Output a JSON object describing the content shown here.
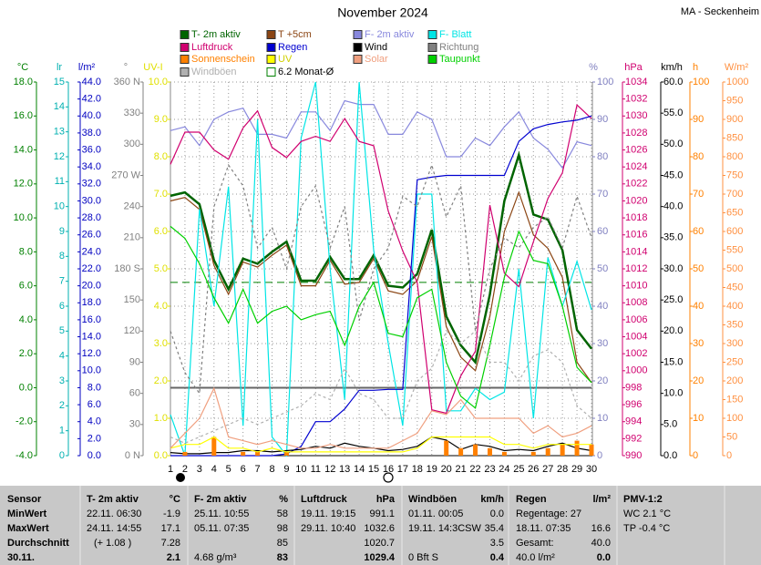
{
  "chart_data": {
    "type": "line",
    "title": "November 2024",
    "station": "MA - Seckenheim",
    "x": [
      1,
      2,
      3,
      4,
      5,
      6,
      7,
      8,
      9,
      10,
      11,
      12,
      13,
      14,
      15,
      16,
      17,
      18,
      19,
      20,
      21,
      22,
      23,
      24,
      25,
      26,
      27,
      28,
      29,
      30
    ],
    "xlim": [
      1,
      30
    ],
    "axes": [
      {
        "id": "temp",
        "label": "°C",
        "color": "#008000",
        "lim": [
          -4,
          18
        ],
        "ticks": [
          {
            "value": -4,
            "label": "-4.0"
          },
          {
            "value": -2,
            "label": "-2.0"
          },
          {
            "value": 0,
            "label": "0.0"
          },
          {
            "value": 2,
            "label": "2.0"
          },
          {
            "value": 4,
            "label": "4.0"
          },
          {
            "value": 6,
            "label": "6.0"
          },
          {
            "value": 8,
            "label": "8.0"
          },
          {
            "value": 10,
            "label": "10.0"
          },
          {
            "value": 12,
            "label": "12.0"
          },
          {
            "value": 14,
            "label": "14.0"
          },
          {
            "value": 16,
            "label": "16.0"
          },
          {
            "value": 18,
            "label": "18.0"
          }
        ]
      },
      {
        "id": "lr",
        "label": "lr",
        "color": "#00b0b0",
        "lim": [
          0,
          15
        ],
        "ticks": [
          0,
          1,
          2,
          3,
          4,
          5,
          6,
          7,
          8,
          9,
          10,
          11,
          12,
          13,
          14,
          15
        ]
      },
      {
        "id": "rain",
        "label": "l/m²",
        "color": "#0000c0",
        "lim": [
          0,
          44
        ],
        "ticks": [
          {
            "value": 0,
            "label": "0.0"
          },
          {
            "value": 2,
            "label": "2.0"
          },
          {
            "value": 4,
            "label": "4.0"
          },
          {
            "value": 6,
            "label": "6.0"
          },
          {
            "value": 8,
            "label": "8.0"
          },
          {
            "value": 10,
            "label": "10.0"
          },
          {
            "value": 12,
            "label": "12.0"
          },
          {
            "value": 14,
            "label": "14.0"
          },
          {
            "value": 16,
            "label": "16.0"
          },
          {
            "value": 18,
            "label": "18.0"
          },
          {
            "value": 20,
            "label": "20.0"
          },
          {
            "value": 22,
            "label": "22.0"
          },
          {
            "value": 24,
            "label": "24.0"
          },
          {
            "value": 26,
            "label": "26.0"
          },
          {
            "value": 28,
            "label": "28.0"
          },
          {
            "value": 30,
            "label": "30.0"
          },
          {
            "value": 32,
            "label": "32.0"
          },
          {
            "value": 34,
            "label": "34.0"
          },
          {
            "value": 36,
            "label": "36.0"
          },
          {
            "value": 38,
            "label": "38.0"
          },
          {
            "value": 40,
            "label": "40.0"
          },
          {
            "value": 42,
            "label": "42.0"
          },
          {
            "value": 44,
            "label": "44.0"
          }
        ]
      },
      {
        "id": "deg",
        "label": "°",
        "color": "#808080",
        "lim": [
          0,
          360
        ],
        "ticks": [
          {
            "value": 0,
            "label": "0 N"
          },
          30,
          60,
          90,
          120,
          150,
          {
            "value": 180,
            "label": "180 S"
          },
          210,
          240,
          {
            "value": 270,
            "label": "270 W"
          },
          300,
          330,
          {
            "value": 360,
            "label": "360 N"
          }
        ]
      },
      {
        "id": "uv",
        "label": "UV-I",
        "color": "#e0e000",
        "lim": [
          0,
          10
        ],
        "grid": true,
        "ticks": [
          {
            "value": 0,
            "label": "0.0"
          },
          {
            "value": 1,
            "label": "1.0"
          },
          {
            "value": 2,
            "label": "2.0"
          },
          {
            "value": 3,
            "label": "3.0"
          },
          {
            "value": 4,
            "label": "4.0"
          },
          {
            "value": 5,
            "label": "5.0"
          },
          {
            "value": 6,
            "label": "6.0"
          },
          {
            "value": 7,
            "label": "7.0"
          },
          {
            "value": 8,
            "label": "8.0"
          },
          {
            "value": 9,
            "label": "9.0"
          },
          {
            "value": 10,
            "label": "10.0"
          }
        ]
      },
      {
        "id": "pct",
        "label": "%",
        "color": "#8080c0",
        "lim": [
          0,
          100
        ],
        "ticks": [
          0,
          10,
          20,
          30,
          40,
          50,
          60,
          70,
          80,
          90,
          100
        ]
      },
      {
        "id": "hpa",
        "label": "hPa",
        "color": "#d0006f",
        "lim": [
          990,
          1034
        ],
        "ticks": [
          990,
          992,
          994,
          996,
          998,
          1000,
          1002,
          1004,
          1006,
          1008,
          1010,
          1012,
          1014,
          1016,
          1018,
          1020,
          1022,
          1024,
          1026,
          1028,
          1030,
          1032,
          1034
        ]
      },
      {
        "id": "kmh",
        "label": "km/h",
        "color": "#000000",
        "lim": [
          0,
          60
        ],
        "ticks": [
          {
            "value": 0,
            "label": "0.0"
          },
          {
            "value": 5,
            "label": "5.0"
          },
          {
            "value": 10,
            "label": "10.0"
          },
          {
            "value": 15,
            "label": "15.0"
          },
          {
            "value": 20,
            "label": "20.0"
          },
          {
            "value": 25,
            "label": "25.0"
          },
          {
            "value": 30,
            "label": "30.0"
          },
          {
            "value": 35,
            "label": "35.0"
          },
          {
            "value": 40,
            "label": "40.0"
          },
          {
            "value": 45,
            "label": "45.0"
          },
          {
            "value": 50,
            "label": "50.0"
          },
          {
            "value": 55,
            "label": "55.0"
          },
          {
            "value": 60,
            "label": "60.0"
          }
        ]
      },
      {
        "id": "hours",
        "label": "h",
        "color": "#ff8000",
        "lim": [
          0,
          100
        ],
        "ticks": [
          0,
          10,
          20,
          30,
          40,
          50,
          60,
          70,
          80,
          90,
          100
        ]
      },
      {
        "id": "solar",
        "label": "W/m²",
        "color": "#ff9040",
        "lim": [
          0,
          1000
        ],
        "ticks": [
          0,
          50,
          100,
          150,
          200,
          250,
          300,
          350,
          400,
          450,
          500,
          550,
          600,
          650,
          700,
          750,
          800,
          850,
          900,
          950,
          1000
        ]
      }
    ],
    "series": [
      {
        "name": "T- 2m aktiv",
        "color": "#006400",
        "axis": "temp",
        "style": "thick",
        "values": [
          11.3,
          11.5,
          10.8,
          7.5,
          5.8,
          7.6,
          7.3,
          8.0,
          8.6,
          6.3,
          6.3,
          7.7,
          6.4,
          6.4,
          7.8,
          6.0,
          5.9,
          6.7,
          9.3,
          4.2,
          2.5,
          1.5,
          5.5,
          11.0,
          13.7,
          10.2,
          9.9,
          8.1,
          3.4,
          2.3
        ]
      },
      {
        "name": "T +5cm",
        "color": "#8b4513",
        "axis": "temp",
        "style": "line",
        "values": [
          11.0,
          11.2,
          10.5,
          7.2,
          5.5,
          7.4,
          7.1,
          7.8,
          8.4,
          6.0,
          6.0,
          7.5,
          6.1,
          6.2,
          7.6,
          5.7,
          5.5,
          6.3,
          8.9,
          3.6,
          1.8,
          1.0,
          4.2,
          9.2,
          11.5,
          9.0,
          8.2,
          6.5,
          1.5,
          0.3
        ]
      },
      {
        "name": "F- 2m aktiv",
        "color": "#8888dd",
        "axis": "pct",
        "style": "line",
        "values": [
          87,
          88,
          83,
          90,
          92,
          93,
          86,
          86,
          85,
          92,
          92,
          87,
          95,
          94,
          94,
          86,
          86,
          92,
          90,
          80,
          80,
          85,
          83,
          88,
          92,
          85,
          82,
          77,
          84,
          83
        ]
      },
      {
        "name": "F- Blatt",
        "color": "#00e5e5",
        "axis": "pct",
        "style": "line",
        "values": [
          11,
          0,
          66,
          40,
          72,
          8,
          90,
          5,
          0,
          85,
          100,
          50,
          15,
          100,
          55,
          30,
          8,
          70,
          70,
          12,
          12,
          18,
          15,
          17,
          50,
          10,
          53,
          40,
          52,
          39
        ]
      },
      {
        "name": "Luftdruck",
        "color": "#d0006f",
        "axis": "hpa",
        "style": "line",
        "values": [
          1024.3,
          1028.1,
          1028.1,
          1026.0,
          1024.9,
          1028.6,
          1030.6,
          1026.3,
          1025.1,
          1027.0,
          1027.6,
          1027.0,
          1029.7,
          1027.0,
          1026.5,
          1018.8,
          1014.1,
          1010.4,
          995.4,
          995.0,
          999.4,
          1002.3,
          1019.5,
          1011.5,
          1009.9,
          1015.2,
          1020.3,
          1023.3,
          1031.3,
          1029.7
        ]
      },
      {
        "name": "Regen",
        "color": "#0000d0",
        "axis": "rain",
        "style": "line",
        "values": [
          0,
          0,
          0,
          0,
          0,
          0,
          0,
          0,
          0.2,
          1.1,
          4.0,
          4.0,
          5.5,
          7.7,
          7.7,
          7.8,
          7.8,
          32.5,
          32.8,
          33.0,
          33.0,
          33.0,
          33.0,
          33.0,
          37.0,
          38.5,
          39.0,
          39.3,
          39.5,
          40.0
        ]
      },
      {
        "name": "Wind",
        "color": "#000000",
        "axis": "kmh",
        "style": "line",
        "values": [
          0.5,
          0.3,
          0.3,
          0.5,
          0.5,
          0.8,
          0.8,
          0.6,
          0.8,
          1.0,
          1.5,
          1.2,
          2.0,
          1.5,
          1.2,
          0.8,
          1.0,
          1.5,
          3.0,
          2.5,
          1.0,
          1.8,
          1.5,
          0.8,
          1.0,
          0.8,
          1.5,
          2.0,
          1.2,
          0.8
        ]
      },
      {
        "name": "Richtung",
        "color": "#808080",
        "axis": "deg",
        "style": "dashed",
        "values": [
          120,
          80,
          60,
          240,
          280,
          260,
          200,
          220,
          180,
          240,
          260,
          200,
          240,
          130,
          180,
          200,
          250,
          240,
          280,
          230,
          260,
          120,
          180,
          210,
          200,
          220,
          230,
          200,
          250,
          210
        ]
      },
      {
        "name": "Sonnenschein",
        "color": "#ff8000",
        "axis": "hours",
        "style": "bar",
        "values": [
          0,
          1,
          0,
          5,
          0,
          1,
          1,
          0,
          1,
          0,
          0,
          0,
          0,
          0,
          0,
          0,
          0,
          0,
          0,
          4,
          2,
          3,
          2,
          1,
          0,
          1,
          2,
          3,
          4,
          3
        ]
      },
      {
        "name": "UV",
        "color": "#ffff00",
        "axis": "uv",
        "style": "line",
        "values": [
          0.2,
          0.3,
          0.3,
          0.5,
          0.2,
          0.2,
          0.1,
          0.2,
          0.1,
          0.1,
          0.1,
          0.1,
          0.1,
          0.1,
          0.1,
          0.1,
          0.1,
          0.2,
          0.5,
          0.5,
          0.5,
          0.5,
          0.5,
          0.3,
          0.3,
          0.2,
          0.3,
          0.3,
          0.3,
          0.3
        ]
      },
      {
        "name": "Solar",
        "color": "#f0a080",
        "axis": "solar",
        "style": "line",
        "values": [
          20,
          60,
          100,
          180,
          50,
          40,
          30,
          40,
          30,
          20,
          20,
          30,
          20,
          20,
          20,
          20,
          40,
          60,
          120,
          110,
          150,
          100,
          100,
          100,
          100,
          60,
          80,
          50,
          60,
          80
        ]
      },
      {
        "name": "Taupunkt",
        "color": "#00d000",
        "axis": "temp",
        "style": "line",
        "values": [
          9.5,
          8.8,
          7.3,
          5.3,
          3.8,
          5.8,
          3.8,
          4.5,
          4.8,
          4.0,
          4.3,
          4.5,
          2.5,
          4.8,
          6.2,
          3.2,
          3.0,
          5.3,
          5.8,
          1.5,
          -0.5,
          -1.2,
          2.5,
          6.5,
          9.2,
          7.5,
          7.3,
          4.8,
          1.2,
          0.3
        ]
      },
      {
        "name": "Windböen",
        "color": "#b0b0b0",
        "axis": "kmh",
        "style": "dashed",
        "values": [
          3,
          2,
          3,
          4,
          5,
          6,
          5,
          6,
          7,
          8,
          10,
          9,
          14,
          10,
          9,
          6,
          6,
          12,
          14,
          20,
          18,
          20,
          15,
          15,
          12,
          16,
          17,
          15,
          8,
          6
        ]
      }
    ],
    "monthly_mean": {
      "label": "6.2 Monat-Ø",
      "value": 6.2,
      "axis": "temp",
      "color": "#008000"
    }
  },
  "table": {
    "row_labels": [
      "Sensor",
      "MinWert",
      "MaxWert",
      "Durchschnitt",
      "30.11."
    ],
    "columns": [
      {
        "header": "T- 2m aktiv",
        "unit": "°C",
        "cells": [
          [
            "22.11. 06:30",
            "-1.9"
          ],
          [
            "24.11. 14:55",
            "17.1"
          ],
          [
            "(+ 1.08 )",
            "7.28"
          ],
          [
            null,
            "2.1"
          ]
        ]
      },
      {
        "header": "F- 2m aktiv",
        "unit": "%",
        "cells": [
          [
            "25.11. 10:55",
            "58"
          ],
          [
            "05.11. 07:35",
            "98"
          ],
          [
            null,
            "85"
          ],
          [
            "4.68 g/m³",
            "83"
          ]
        ]
      },
      {
        "header": "Luftdruck",
        "unit": "hPa",
        "cells": [
          [
            "19.11. 19:15",
            "991.1"
          ],
          [
            "29.11. 10:40",
            "1032.6"
          ],
          [
            null,
            "1020.7"
          ],
          [
            null,
            "1029.4"
          ]
        ]
      },
      {
        "header": "Windböen",
        "unit": "km/h",
        "cells": [
          [
            "01.11. 00:05",
            "0.0"
          ],
          [
            "19.11. 14:3CSW",
            "35.4"
          ],
          [
            null,
            "3.5"
          ],
          [
            "0 Bft S",
            "0.4"
          ]
        ]
      },
      {
        "header": "Regen",
        "unit": "l/m²",
        "cells": [
          [
            "Regentage: 27",
            null
          ],
          [
            "18.11. 07:35",
            "16.6"
          ],
          [
            "Gesamt:",
            "40.0"
          ],
          [
            "40.0 l/m²",
            "0.0"
          ]
        ]
      },
      {
        "header": "PMV-1:2",
        "unit": null,
        "cells": [
          [
            "WC 2.1 °C",
            null
          ],
          [
            "TP -0.4 °C",
            null
          ],
          [
            null,
            null
          ],
          [
            null,
            null
          ]
        ]
      }
    ]
  }
}
